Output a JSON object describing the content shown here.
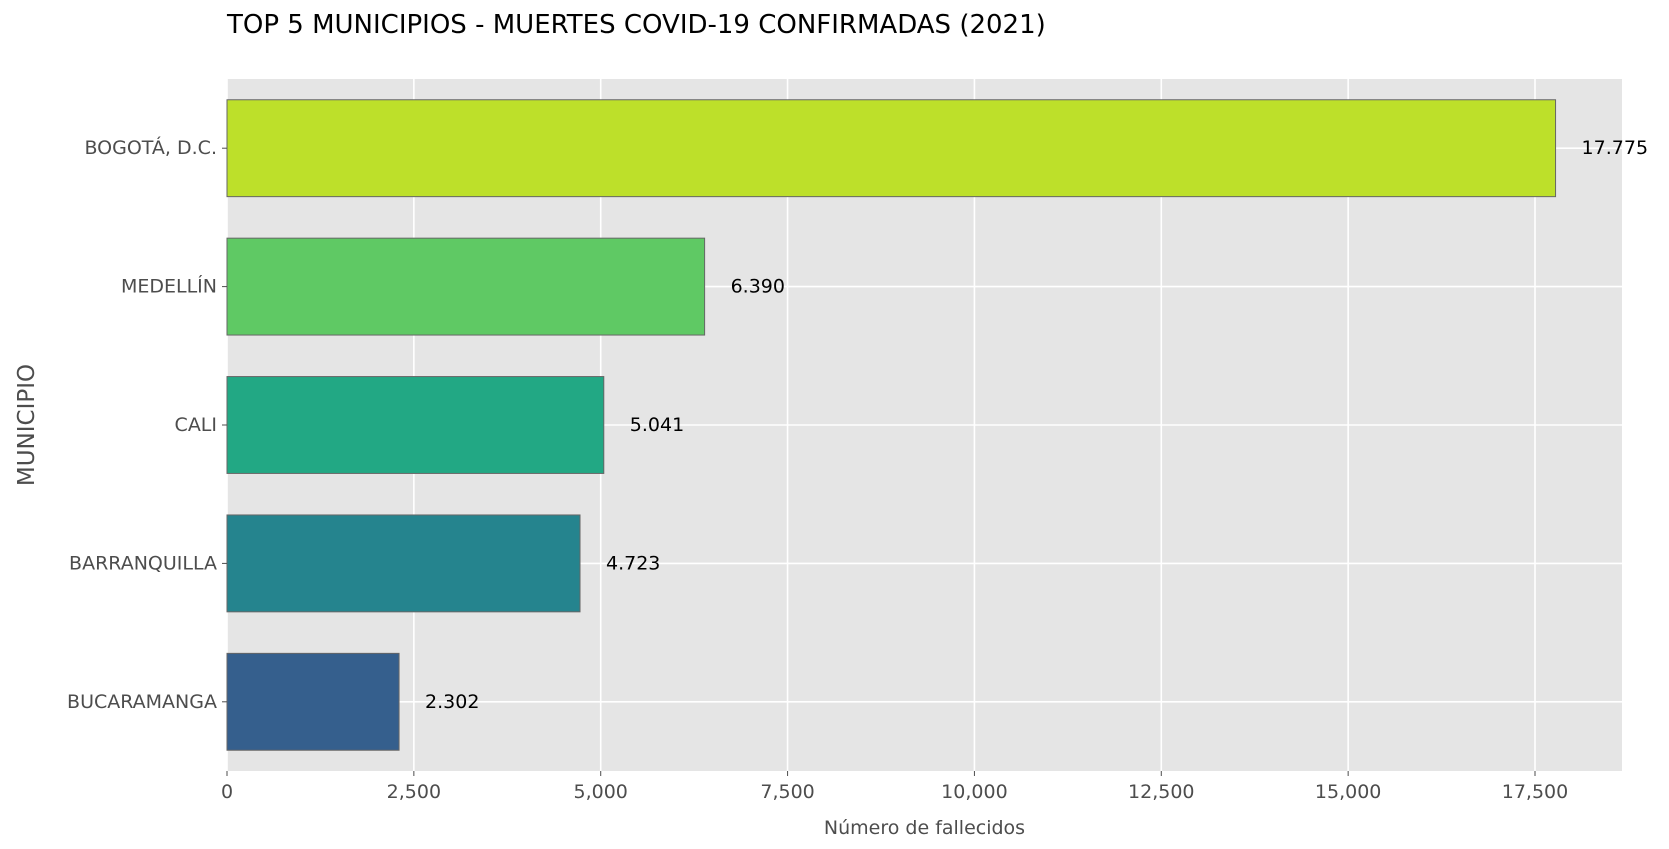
{
  "chart_data": {
    "type": "bar",
    "orientation": "horizontal",
    "title": "TOP 5 MUNICIPIOS - MUERTES COVID-19 CONFIRMADAS (2021)",
    "xlabel": "Número de fallecidos",
    "ylabel": "MUNICIPIO",
    "categories": [
      "BOGOTÁ, D.C.",
      "MEDELLÍN",
      "CALI",
      "BARRANQUILLA",
      "BUCARAMANGA"
    ],
    "values": [
      17775,
      6390,
      5041,
      4723,
      2302
    ],
    "value_labels": [
      "17.775",
      "6.390",
      "5.041",
      "4.723",
      "2.302"
    ],
    "colors": [
      "#bde02a",
      "#5fc964",
      "#22a884",
      "#25848e",
      "#355f8d"
    ],
    "xlim": [
      0,
      18664
    ],
    "xticks": [
      0,
      2500,
      5000,
      7500,
      10000,
      12500,
      15000,
      17500
    ],
    "xtick_labels": [
      "0",
      "2,500",
      "5,000",
      "7,500",
      "10,000",
      "12,500",
      "15,000",
      "17,500"
    ],
    "grid": true,
    "background": "#e5e5e5",
    "gridline_color": "#ffffff",
    "bar_edge_color": "#666666"
  }
}
